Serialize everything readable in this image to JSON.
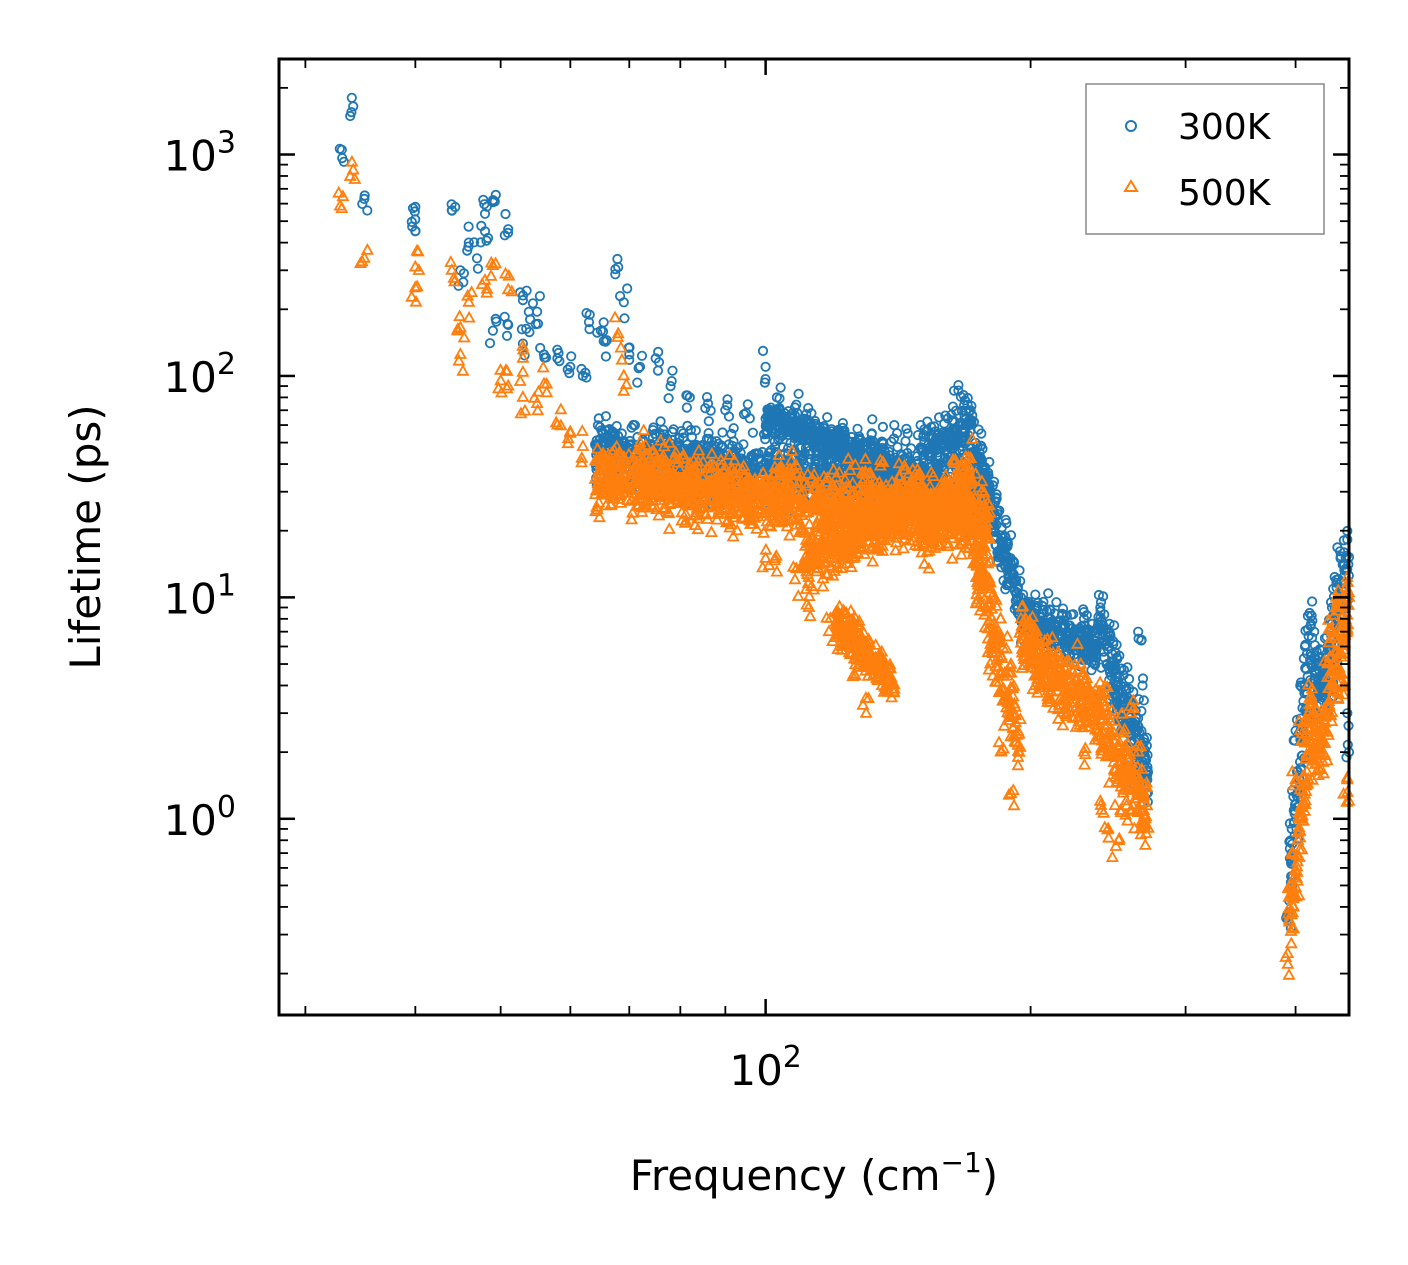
{
  "chart_data": {
    "type": "scatter",
    "title": "",
    "xlabel": "Frequency (cm",
    "xlabel_sup": "−1",
    "xlabel_close": ")",
    "ylabel": "Lifetime (ps)",
    "xscale": "log",
    "yscale": "log",
    "xlim": [
      28,
      460
    ],
    "ylim": [
      0.13,
      2700
    ],
    "x_ticks": [
      {
        "value": 100,
        "base": "10",
        "exp": "2"
      }
    ],
    "y_ticks": [
      {
        "value": 1,
        "base": "10",
        "exp": "0"
      },
      {
        "value": 10,
        "base": "10",
        "exp": "1"
      },
      {
        "value": 100,
        "base": "10",
        "exp": "2"
      },
      {
        "value": 1000,
        "base": "10",
        "exp": "3"
      }
    ],
    "legend": {
      "position": "top-right"
    },
    "series": [
      {
        "name": "300K",
        "color": "#1f77b4",
        "marker": "circle",
        "anchors": [
          [
            33,
            1050
          ],
          [
            34,
            1650
          ],
          [
            35,
            630
          ],
          [
            40,
            580
          ],
          [
            40,
            450
          ],
          [
            44,
            560
          ],
          [
            45,
            300
          ],
          [
            46,
            400
          ],
          [
            47,
            340
          ],
          [
            48,
            450
          ],
          [
            48,
            540
          ],
          [
            49,
            610
          ],
          [
            49,
            160
          ],
          [
            51,
            460
          ],
          [
            51,
            170
          ],
          [
            53,
            220
          ],
          [
            53,
            140
          ],
          [
            54,
            180
          ],
          [
            55,
            195
          ],
          [
            56,
            125
          ],
          [
            58,
            120
          ],
          [
            60,
            110
          ],
          [
            62,
            100
          ],
          [
            63,
            175
          ],
          [
            65,
            160
          ],
          [
            66,
            145
          ],
          [
            68,
            310
          ],
          [
            69,
            215
          ],
          [
            70,
            125
          ],
          [
            72,
            110
          ],
          [
            75,
            120
          ],
          [
            78,
            90
          ],
          [
            82,
            80
          ],
          [
            86,
            75
          ],
          [
            90,
            70
          ],
          [
            95,
            68
          ],
          [
            100,
            110
          ],
          [
            103,
            80
          ],
          [
            108,
            72
          ],
          [
            112,
            62
          ],
          [
            118,
            55
          ],
          [
            122,
            48
          ],
          [
            128,
            52
          ],
          [
            132,
            55
          ],
          [
            136,
            50
          ],
          [
            140,
            60
          ],
          [
            145,
            55
          ],
          [
            150,
            60
          ],
          [
            155,
            50
          ],
          [
            160,
            55
          ],
          [
            165,
            50
          ],
          [
            170,
            60
          ],
          [
            175,
            45
          ],
          [
            180,
            30
          ],
          [
            185,
            18
          ],
          [
            190,
            12
          ],
          [
            195,
            10
          ],
          [
            200,
            8
          ],
          [
            210,
            7
          ],
          [
            220,
            6.5
          ],
          [
            230,
            8
          ],
          [
            240,
            9
          ],
          [
            245,
            6
          ],
          [
            250,
            4
          ],
          [
            255,
            2.5
          ],
          [
            260,
            2
          ],
          [
            263,
            1.6
          ],
          [
            265,
            7
          ],
          [
            268,
            4
          ],
          [
            270,
            1.5
          ],
          [
            392,
            0.35
          ],
          [
            396,
            0.9
          ],
          [
            400,
            2.5
          ],
          [
            405,
            4
          ],
          [
            410,
            6
          ],
          [
            415,
            8.5
          ],
          [
            420,
            7
          ],
          [
            425,
            5
          ],
          [
            430,
            4
          ],
          [
            435,
            6
          ],
          [
            440,
            9
          ],
          [
            445,
            12
          ],
          [
            450,
            15
          ],
          [
            455,
            10
          ],
          [
            458,
            3
          ],
          [
            460,
            2
          ]
        ],
        "dense_segments": [
          [
            64,
            180,
            45,
            28,
            0.9
          ],
          [
            100,
            150,
            65,
            35,
            0.5
          ],
          [
            150,
            172,
            40,
            62,
            1.0
          ],
          [
            172,
            195,
            50,
            9,
            1.0
          ],
          [
            195,
            238,
            8,
            6,
            0.7
          ],
          [
            238,
            272,
            8,
            1.6,
            1.2
          ],
          [
            392,
            418,
            0.5,
            7,
            1.6
          ],
          [
            418,
            432,
            4,
            4,
            1.0
          ],
          [
            432,
            460,
            4,
            15,
            1.4
          ]
        ]
      },
      {
        "name": "500K",
        "color": "#ff7f0e",
        "marker": "triangle",
        "anchors": [
          [
            33,
            570
          ],
          [
            34,
            850
          ],
          [
            35,
            340
          ],
          [
            40,
            250
          ],
          [
            40,
            310
          ],
          [
            44,
            300
          ],
          [
            45,
            165
          ],
          [
            45,
            125
          ],
          [
            46,
            215
          ],
          [
            48,
            270
          ],
          [
            49,
            315
          ],
          [
            50,
            95
          ],
          [
            51,
            245
          ],
          [
            51,
            90
          ],
          [
            53,
            120
          ],
          [
            53,
            80
          ],
          [
            55,
            75
          ],
          [
            56,
            92
          ],
          [
            58,
            60
          ],
          [
            60,
            55
          ],
          [
            62,
            48
          ],
          [
            65,
            40
          ],
          [
            68,
            155
          ],
          [
            69,
            100
          ],
          [
            72,
            50
          ],
          [
            75,
            38
          ],
          [
            80,
            30
          ],
          [
            85,
            28
          ],
          [
            90,
            30
          ],
          [
            95,
            25
          ],
          [
            100,
            15
          ],
          [
            103,
            13
          ],
          [
            108,
            12
          ],
          [
            112,
            9
          ],
          [
            118,
            7
          ],
          [
            122,
            6
          ],
          [
            126,
            4.5
          ],
          [
            130,
            3.5
          ],
          [
            135,
            20
          ],
          [
            140,
            22
          ],
          [
            145,
            25
          ],
          [
            150,
            24
          ],
          [
            155,
            22
          ],
          [
            160,
            30
          ],
          [
            165,
            35
          ],
          [
            170,
            20
          ],
          [
            175,
            12
          ],
          [
            178,
            9
          ],
          [
            180,
            5
          ],
          [
            185,
            2
          ],
          [
            190,
            1.3
          ],
          [
            195,
            8
          ],
          [
            200,
            6
          ],
          [
            210,
            4
          ],
          [
            220,
            3
          ],
          [
            230,
            2
          ],
          [
            240,
            1.2
          ],
          [
            245,
            0.9
          ],
          [
            250,
            0.75
          ],
          [
            255,
            1.5
          ],
          [
            260,
            3
          ],
          [
            265,
            2
          ],
          [
            270,
            1
          ],
          [
            392,
            0.22
          ],
          [
            396,
            0.5
          ],
          [
            400,
            1.5
          ],
          [
            405,
            2.5
          ],
          [
            410,
            2.2
          ],
          [
            415,
            3.5
          ],
          [
            420,
            3
          ],
          [
            425,
            2
          ],
          [
            430,
            2.5
          ],
          [
            435,
            5
          ],
          [
            440,
            7
          ],
          [
            445,
            10
          ],
          [
            450,
            9
          ],
          [
            455,
            4
          ],
          [
            458,
            1.5
          ],
          [
            460,
            1.2
          ]
        ],
        "dense_segments": [
          [
            64,
            180,
            35,
            22,
            1.0
          ],
          [
            110,
            150,
            14,
            30,
            0.9
          ],
          [
            120,
            140,
            8,
            4,
            0.6
          ],
          [
            150,
            172,
            20,
            35,
            1.0
          ],
          [
            172,
            195,
            20,
            2,
            1.4
          ],
          [
            195,
            238,
            6,
            3,
            1.0
          ],
          [
            238,
            272,
            3,
            1,
            1.3
          ],
          [
            392,
            418,
            0.3,
            3,
            1.6
          ],
          [
            418,
            432,
            2,
            2.5,
            1.0
          ],
          [
            432,
            460,
            3,
            9,
            1.4
          ]
        ]
      }
    ]
  }
}
